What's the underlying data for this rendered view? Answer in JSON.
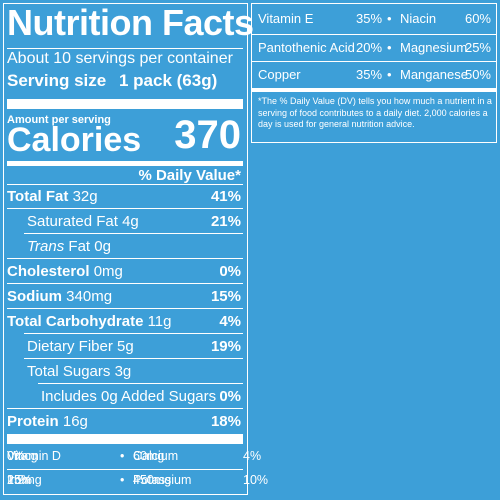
{
  "label": {
    "title": "Nutrition Facts",
    "servings": "About 10 servings per container",
    "serving_size_label": "Serving size",
    "serving_size_value": "1 pack (63g)",
    "amount_per_serving": "Amount per serving",
    "calories_label": "Calories",
    "calories_value": "370",
    "dv_header": "% Daily Value*"
  },
  "nutrients": [
    {
      "name": "Total Fat",
      "amount": "32g",
      "pct": "41%"
    },
    {
      "name": "Saturated Fat",
      "amount": "4g",
      "pct": "21%"
    },
    {
      "name": "Trans",
      "suffix": "Fat",
      "amount": "0g",
      "pct": ""
    },
    {
      "name": "Cholesterol",
      "amount": "0mg",
      "pct": "0%"
    },
    {
      "name": "Sodium",
      "amount": "340mg",
      "pct": "15%"
    },
    {
      "name": "Total Carbohydrate",
      "amount": "11g",
      "pct": "4%"
    },
    {
      "name": "Dietary Fiber",
      "amount": "5g",
      "pct": "19%"
    },
    {
      "name": "Total Sugars",
      "amount": "3g",
      "pct": ""
    },
    {
      "name": "Includes 0g Added Sugars",
      "amount": "",
      "pct": "0%"
    },
    {
      "name": "Protein",
      "amount": "16g",
      "pct": "18%"
    }
  ],
  "footer_vitamins": [
    {
      "name": "Vitamin D",
      "amount": "0mcg",
      "pct": "0%"
    },
    {
      "name": "Calcium",
      "amount": "60mg",
      "pct": "4%"
    },
    {
      "name": "Iron",
      "amount": "2.9mg",
      "pct": "15%"
    },
    {
      "name": "Potassium",
      "amount": "450mg",
      "pct": "10%"
    }
  ],
  "right_vitamins": [
    {
      "name": "Vitamin E",
      "pct": "35%"
    },
    {
      "name": "Niacin",
      "pct": "60%"
    },
    {
      "name": "Pantothenic Acid",
      "pct": "20%"
    },
    {
      "name": "Magnesium",
      "pct": "25%"
    },
    {
      "name": "Copper",
      "pct": "35%"
    },
    {
      "name": "Manganese",
      "pct": "50%"
    }
  ],
  "bullet": "•",
  "footnote": "*The % Daily Value (DV) tells you how much a nutrient in a serving of food contributes to a daily diet. 2,000 calories a day is used for general nutrition advice.",
  "colors": {
    "background": "#3d9fd8",
    "text": "#ffffff"
  }
}
